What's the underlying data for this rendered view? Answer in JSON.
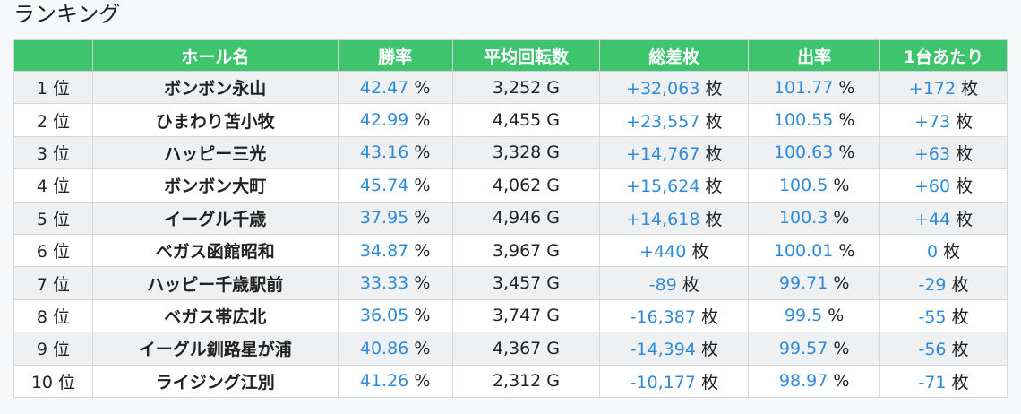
{
  "header": {
    "title": "ランキング"
  },
  "table": {
    "columns": [
      "ホール名",
      "勝率",
      "平均回転数",
      "総差枚",
      "出率",
      "1台あたり"
    ],
    "rows": [
      {
        "rank": "1 位",
        "hall": "ボンボン永山",
        "win_rate": {
          "value": "42.47",
          "unit": "%"
        },
        "avg_spins": "3,252 G",
        "diff": {
          "value": "+32,063",
          "unit": "枚"
        },
        "payout": {
          "value": "101.77",
          "unit": "%"
        },
        "per_machine": {
          "value": "+172",
          "unit": "枚"
        }
      },
      {
        "rank": "2 位",
        "hall": "ひまわり苫小牧",
        "win_rate": {
          "value": "42.99",
          "unit": "%"
        },
        "avg_spins": "4,455 G",
        "diff": {
          "value": "+23,557",
          "unit": "枚"
        },
        "payout": {
          "value": "100.55",
          "unit": "%"
        },
        "per_machine": {
          "value": "+73",
          "unit": "枚"
        }
      },
      {
        "rank": "3 位",
        "hall": "ハッピー三光",
        "win_rate": {
          "value": "43.16",
          "unit": "%"
        },
        "avg_spins": "3,328 G",
        "diff": {
          "value": "+14,767",
          "unit": "枚"
        },
        "payout": {
          "value": "100.63",
          "unit": "%"
        },
        "per_machine": {
          "value": "+63",
          "unit": "枚"
        }
      },
      {
        "rank": "4 位",
        "hall": "ボンボン大町",
        "win_rate": {
          "value": "45.74",
          "unit": "%"
        },
        "avg_spins": "4,062 G",
        "diff": {
          "value": "+15,624",
          "unit": "枚"
        },
        "payout": {
          "value": "100.5",
          "unit": "%"
        },
        "per_machine": {
          "value": "+60",
          "unit": "枚"
        }
      },
      {
        "rank": "5 位",
        "hall": "イーグル千歳",
        "win_rate": {
          "value": "37.95",
          "unit": "%"
        },
        "avg_spins": "4,946 G",
        "diff": {
          "value": "+14,618",
          "unit": "枚"
        },
        "payout": {
          "value": "100.3",
          "unit": "%"
        },
        "per_machine": {
          "value": "+44",
          "unit": "枚"
        }
      },
      {
        "rank": "6 位",
        "hall": "ベガス函館昭和",
        "win_rate": {
          "value": "34.87",
          "unit": "%"
        },
        "avg_spins": "3,967 G",
        "diff": {
          "value": "+440",
          "unit": "枚"
        },
        "payout": {
          "value": "100.01",
          "unit": "%"
        },
        "per_machine": {
          "value": "0",
          "unit": "枚"
        }
      },
      {
        "rank": "7 位",
        "hall": "ハッピー千歳駅前",
        "win_rate": {
          "value": "33.33",
          "unit": "%"
        },
        "avg_spins": "3,457 G",
        "diff": {
          "value": "-89",
          "unit": "枚"
        },
        "payout": {
          "value": "99.71",
          "unit": "%"
        },
        "per_machine": {
          "value": "-29",
          "unit": "枚"
        }
      },
      {
        "rank": "8 位",
        "hall": "ベガス帯広北",
        "win_rate": {
          "value": "36.05",
          "unit": "%"
        },
        "avg_spins": "3,747 G",
        "diff": {
          "value": "-16,387",
          "unit": "枚"
        },
        "payout": {
          "value": "99.5",
          "unit": "%"
        },
        "per_machine": {
          "value": "-55",
          "unit": "枚"
        }
      },
      {
        "rank": "9 位",
        "hall": "イーグル釧路星が浦",
        "win_rate": {
          "value": "40.86",
          "unit": "%"
        },
        "avg_spins": "4,367 G",
        "diff": {
          "value": "-14,394",
          "unit": "枚"
        },
        "payout": {
          "value": "99.57",
          "unit": "%"
        },
        "per_machine": {
          "value": "-56",
          "unit": "枚"
        }
      },
      {
        "rank": "10 位",
        "hall": "ライジング江別",
        "win_rate": {
          "value": "41.26",
          "unit": "%"
        },
        "avg_spins": "2,312 G",
        "diff": {
          "value": "-10,177",
          "unit": "枚"
        },
        "payout": {
          "value": "98.97",
          "unit": "%"
        },
        "per_machine": {
          "value": "-71",
          "unit": "枚"
        }
      }
    ]
  }
}
